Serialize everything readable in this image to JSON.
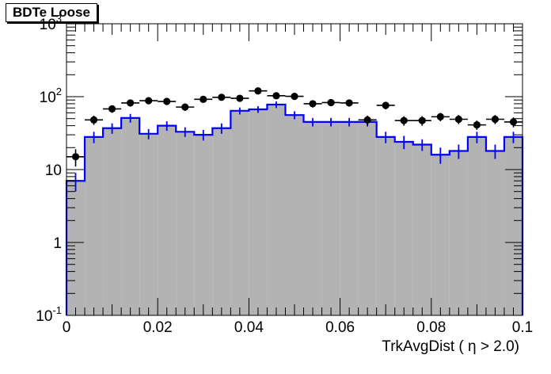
{
  "chart_data": {
    "type": "histogram",
    "title": "BDTe Loose",
    "xlabel": "TrkAvgDist ( η > 2.0)",
    "ylabel": "",
    "xlim": [
      0,
      0.1
    ],
    "ylim": [
      0.1,
      1000
    ],
    "log_y": true,
    "grid": false,
    "legend": "none",
    "x_ticks": [
      "0",
      "0.02",
      "0.04",
      "0.06",
      "0.08",
      "0.1"
    ],
    "y_ticks": [
      "10^-1",
      "1",
      "10",
      "10^2",
      "10^3"
    ],
    "bin_edges": [
      0,
      0.004,
      0.008,
      0.012,
      0.016,
      0.02,
      0.024,
      0.028,
      0.032,
      0.036,
      0.04,
      0.044,
      0.048,
      0.052,
      0.056,
      0.06,
      0.064,
      0.068,
      0.072,
      0.076,
      0.08,
      0.084,
      0.088,
      0.092,
      0.096,
      0.1
    ],
    "series": [
      {
        "style": "filled-histogram",
        "values": [
          7,
          28,
          37,
          51,
          31,
          40,
          33,
          30,
          37,
          64,
          67,
          78,
          56,
          45,
          45,
          45,
          45,
          28,
          24,
          22,
          16,
          18,
          28,
          18,
          28
        ],
        "color": "#b3b3b3",
        "outline_color": "#0000ff",
        "errors": [
          2,
          5,
          6,
          7,
          5,
          6,
          5,
          5,
          6,
          7,
          7,
          8,
          7,
          6,
          6,
          6,
          6,
          5,
          5,
          4,
          4,
          4,
          5,
          4,
          5
        ]
      },
      {
        "style": "points",
        "values": [
          15,
          48,
          68,
          82,
          88,
          86,
          72,
          92,
          98,
          95,
          120,
          103,
          101,
          80,
          83,
          82,
          48,
          76,
          47,
          47,
          53,
          49,
          41,
          49,
          45
        ],
        "color": "#000000",
        "errors": [
          4,
          7,
          8,
          9,
          9,
          9,
          8,
          9,
          10,
          10,
          11,
          10,
          10,
          9,
          9,
          9,
          7,
          9,
          7,
          7,
          7,
          7,
          6,
          7,
          7
        ]
      }
    ]
  }
}
